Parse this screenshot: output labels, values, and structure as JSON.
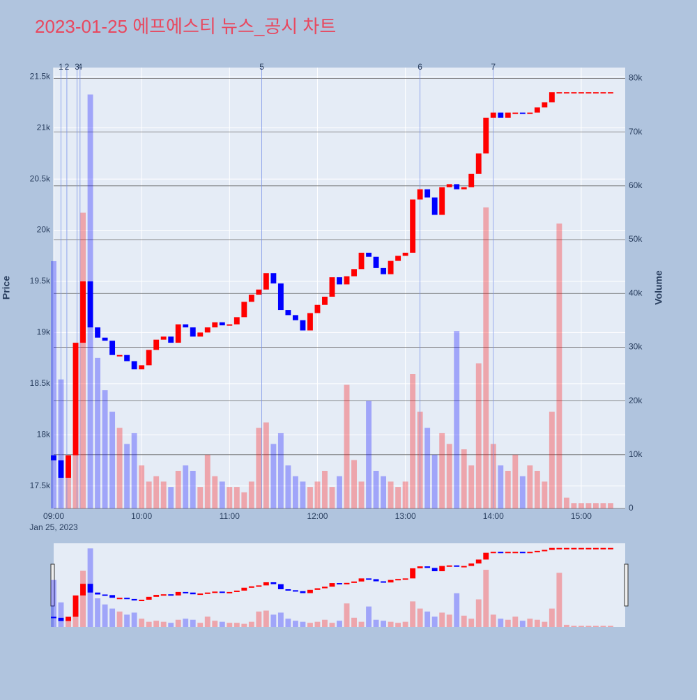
{
  "chart_data": {
    "type": "candlestick",
    "title": "2023-01-25 에프에스티 뉴스_공시 차트",
    "y_axis_label": "Price",
    "y2_axis_label": "Volume",
    "x_date_label": "Jan 25, 2023",
    "x": [
      "09:00",
      "09:05",
      "09:10",
      "09:15",
      "09:20",
      "09:25",
      "09:30",
      "09:35",
      "09:40",
      "09:45",
      "09:50",
      "09:55",
      "10:00",
      "10:05",
      "10:10",
      "10:15",
      "10:20",
      "10:25",
      "10:30",
      "10:35",
      "10:40",
      "10:45",
      "10:50",
      "10:55",
      "11:00",
      "11:05",
      "11:10",
      "11:15",
      "11:20",
      "11:25",
      "11:30",
      "11:35",
      "11:40",
      "11:45",
      "11:50",
      "11:55",
      "12:00",
      "12:05",
      "12:10",
      "12:15",
      "12:20",
      "12:25",
      "12:30",
      "12:35",
      "12:40",
      "12:45",
      "12:50",
      "12:55",
      "13:00",
      "13:05",
      "13:10",
      "13:15",
      "13:20",
      "13:25",
      "13:30",
      "13:35",
      "13:40",
      "13:45",
      "13:50",
      "13:55",
      "14:00",
      "14:05",
      "14:10",
      "14:15",
      "14:20",
      "14:25",
      "14:30",
      "14:35",
      "14:40",
      "14:45",
      "14:50",
      "14:55",
      "15:00",
      "15:05",
      "15:10",
      "15:15",
      "15:20"
    ],
    "open": [
      17800,
      17750,
      17580,
      17800,
      18900,
      19500,
      19050,
      18950,
      18920,
      18780,
      18780,
      18720,
      18640,
      18680,
      18830,
      18930,
      18960,
      18900,
      19080,
      19050,
      18960,
      19000,
      19050,
      19100,
      19070,
      19080,
      19150,
      19300,
      19370,
      19420,
      19580,
      19480,
      19220,
      19170,
      19120,
      19020,
      19190,
      19270,
      19350,
      19540,
      19470,
      19550,
      19620,
      19780,
      19740,
      19630,
      19570,
      19700,
      19750,
      19780,
      20300,
      20400,
      20320,
      20150,
      20420,
      20450,
      20400,
      20420,
      20550,
      20750,
      21100,
      21150,
      21100,
      21150,
      21150,
      21140,
      21150,
      21200,
      21250,
      21350,
      21350,
      21350,
      21350,
      21350,
      21350,
      21350,
      21350
    ],
    "close": [
      17750,
      17580,
      17800,
      18900,
      19500,
      19050,
      18950,
      18920,
      18780,
      18780,
      18720,
      18640,
      18680,
      18830,
      18930,
      18960,
      18900,
      19080,
      19050,
      18960,
      19000,
      19050,
      19100,
      19070,
      19080,
      19150,
      19300,
      19370,
      19420,
      19580,
      19480,
      19220,
      19170,
      19120,
      19020,
      19190,
      19270,
      19350,
      19540,
      19470,
      19550,
      19620,
      19780,
      19740,
      19630,
      19570,
      19700,
      19750,
      19780,
      20300,
      20400,
      20320,
      20150,
      20420,
      20450,
      20400,
      20420,
      20550,
      20750,
      21100,
      21150,
      21100,
      21150,
      21150,
      21140,
      21150,
      21200,
      21250,
      21350,
      21350,
      21350,
      21350,
      21350,
      21350,
      21350,
      21350,
      21350
    ],
    "volume": [
      46000,
      24000,
      8000,
      15000,
      55000,
      77000,
      28000,
      22000,
      18000,
      15000,
      12000,
      14000,
      8000,
      5000,
      6000,
      5000,
      4000,
      7000,
      8000,
      7000,
      4000,
      10000,
      6000,
      5000,
      4000,
      4000,
      3000,
      5000,
      15000,
      16000,
      12000,
      14000,
      8000,
      6000,
      5000,
      4000,
      5000,
      7000,
      4000,
      6000,
      23000,
      9000,
      5000,
      20000,
      7000,
      6000,
      5000,
      4000,
      5000,
      25000,
      18000,
      15000,
      10000,
      14000,
      12000,
      33000,
      11000,
      8000,
      27000,
      56000,
      12000,
      8000,
      7000,
      10000,
      6000,
      8000,
      7000,
      5000,
      18000,
      53000,
      2000,
      1000,
      1000,
      1000,
      1000,
      1000,
      1000
    ],
    "up_color": "#ff0000",
    "down_color": "#0000ff",
    "xlim": [
      "09:00",
      "15:30"
    ],
    "xticks": [
      "09:00",
      "10:00",
      "11:00",
      "12:00",
      "13:00",
      "14:00",
      "15:00"
    ],
    "ylim": [
      17280,
      21590
    ],
    "yticks": [
      {
        "value": 17500,
        "label": "17.5k"
      },
      {
        "value": 18000,
        "label": "18k"
      },
      {
        "value": 18500,
        "label": "18.5k"
      },
      {
        "value": 19000,
        "label": "19k"
      },
      {
        "value": 19500,
        "label": "19.5k"
      },
      {
        "value": 20000,
        "label": "20k"
      },
      {
        "value": 20500,
        "label": "20.5k"
      },
      {
        "value": 21000,
        "label": "21k"
      },
      {
        "value": 21500,
        "label": "21.5k"
      }
    ],
    "y2lim": [
      0,
      82000
    ],
    "y2ticks": [
      0,
      {
        "value": 10000,
        "label": "10k"
      },
      {
        "value": 20000,
        "label": "20k"
      },
      {
        "value": 30000,
        "label": "30k"
      },
      {
        "value": 40000,
        "label": "40k"
      },
      {
        "value": 50000,
        "label": "50k"
      },
      {
        "value": 60000,
        "label": "60k"
      },
      {
        "value": 70000,
        "label": "70k"
      },
      {
        "value": 80000,
        "label": "80k"
      }
    ],
    "grid": true,
    "annotations": [
      {
        "x": "09:05",
        "label": "1"
      },
      {
        "x": "09:09",
        "label": "2"
      },
      {
        "x": "09:16",
        "label": "3"
      },
      {
        "x": "09:18",
        "label": "4"
      },
      {
        "x": "11:22",
        "label": "5"
      },
      {
        "x": "13:10",
        "label": "6"
      },
      {
        "x": "14:00",
        "label": "7"
      }
    ]
  }
}
